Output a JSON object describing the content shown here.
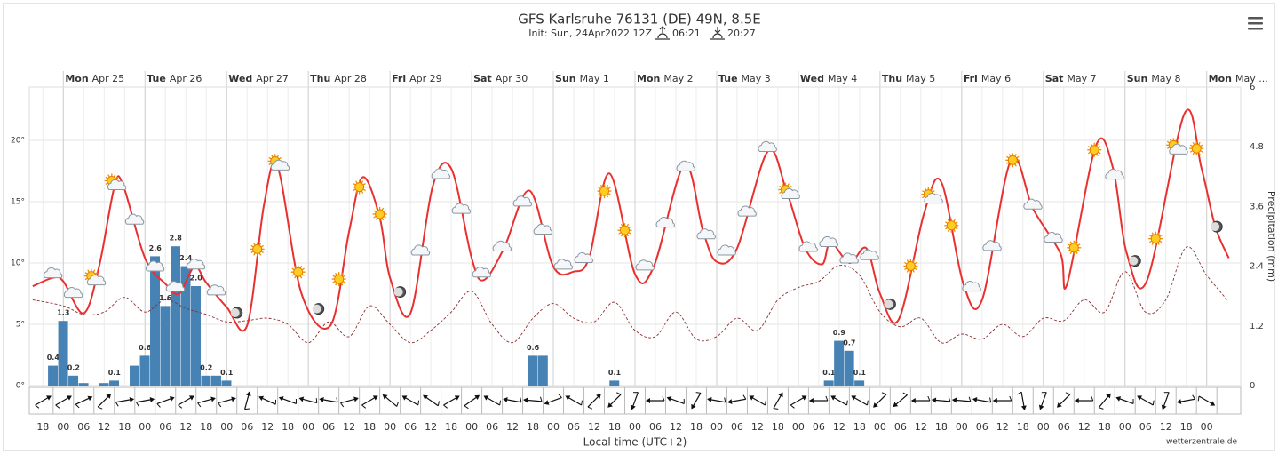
{
  "chart_data": {
    "type": "line",
    "title": "GFS Karlsruhe 76131 (DE) 49N, 8.5E",
    "subtitle": "Init: Sun, 24Apr2022 12Z",
    "sunrise": "06:21",
    "sunset": "20:27",
    "x_label": "Local time (UTC+2)",
    "y2_label": "Precipitation (mm)",
    "credit": "wetterzentrale.de",
    "grid": true,
    "days": [
      {
        "name": "Mon",
        "date": "Apr 25",
        "x": 0
      },
      {
        "name": "Tue",
        "date": "Apr 26",
        "x": 24
      },
      {
        "name": "Wed",
        "date": "Apr 27",
        "x": 48
      },
      {
        "name": "Thu",
        "date": "Apr 28",
        "x": 72
      },
      {
        "name": "Fri",
        "date": "Apr 29",
        "x": 96
      },
      {
        "name": "Sat",
        "date": "Apr 30",
        "x": 120
      },
      {
        "name": "Sun",
        "date": "May 1",
        "x": 144
      },
      {
        "name": "Mon",
        "date": "May 2",
        "x": 168
      },
      {
        "name": "Tue",
        "date": "May 3",
        "x": 192
      },
      {
        "name": "Wed",
        "date": "May 4",
        "x": 216
      },
      {
        "name": "Thu",
        "date": "May 5",
        "x": 240
      },
      {
        "name": "Fri",
        "date": "May 6",
        "x": 264
      },
      {
        "name": "Sat",
        "date": "May 7",
        "x": 288
      },
      {
        "name": "Sun",
        "date": "May 8",
        "x": 312
      },
      {
        "name": "Mon",
        "date": "May ...",
        "x": 336
      }
    ],
    "xlim": [
      -10,
      346
    ],
    "xticks": [
      {
        "value": -6,
        "label": "18"
      },
      {
        "value": 0,
        "label": "00"
      },
      {
        "value": 6,
        "label": "06"
      },
      {
        "value": 12,
        "label": "12"
      },
      {
        "value": 18,
        "label": "18"
      },
      {
        "value": 24,
        "label": "00"
      },
      {
        "value": 30,
        "label": "06"
      },
      {
        "value": 36,
        "label": "12"
      },
      {
        "value": 42,
        "label": "18"
      },
      {
        "value": 48,
        "label": "00"
      },
      {
        "value": 54,
        "label": "06"
      },
      {
        "value": 60,
        "label": "12"
      },
      {
        "value": 66,
        "label": "18"
      },
      {
        "value": 72,
        "label": "00"
      },
      {
        "value": 78,
        "label": "06"
      },
      {
        "value": 84,
        "label": "12"
      },
      {
        "value": 90,
        "label": "18"
      },
      {
        "value": 96,
        "label": "00"
      },
      {
        "value": 102,
        "label": "06"
      },
      {
        "value": 108,
        "label": "12"
      },
      {
        "value": 114,
        "label": "18"
      },
      {
        "value": 120,
        "label": "00"
      },
      {
        "value": 126,
        "label": "06"
      },
      {
        "value": 132,
        "label": "12"
      },
      {
        "value": 138,
        "label": "18"
      },
      {
        "value": 144,
        "label": "00"
      },
      {
        "value": 150,
        "label": "06"
      },
      {
        "value": 156,
        "label": "12"
      },
      {
        "value": 162,
        "label": "18"
      },
      {
        "value": 168,
        "label": "00"
      },
      {
        "value": 174,
        "label": "06"
      },
      {
        "value": 180,
        "label": "12"
      },
      {
        "value": 186,
        "label": "18"
      },
      {
        "value": 192,
        "label": "00"
      },
      {
        "value": 198,
        "label": "06"
      },
      {
        "value": 204,
        "label": "12"
      },
      {
        "value": 210,
        "label": "18"
      },
      {
        "value": 216,
        "label": "00"
      },
      {
        "value": 222,
        "label": "06"
      },
      {
        "value": 228,
        "label": "12"
      },
      {
        "value": 234,
        "label": "18"
      },
      {
        "value": 240,
        "label": "00"
      },
      {
        "value": 246,
        "label": "06"
      },
      {
        "value": 252,
        "label": "12"
      },
      {
        "value": 258,
        "label": "18"
      },
      {
        "value": 264,
        "label": "00"
      },
      {
        "value": 270,
        "label": "06"
      },
      {
        "value": 276,
        "label": "12"
      },
      {
        "value": 282,
        "label": "18"
      },
      {
        "value": 288,
        "label": "00"
      },
      {
        "value": 294,
        "label": "06"
      },
      {
        "value": 300,
        "label": "12"
      },
      {
        "value": 306,
        "label": "18"
      },
      {
        "value": 312,
        "label": "00"
      },
      {
        "value": 318,
        "label": "06"
      },
      {
        "value": 324,
        "label": "12"
      },
      {
        "value": 330,
        "label": "18"
      },
      {
        "value": 336,
        "label": "00"
      }
    ],
    "ylim": [
      0,
      24.35
    ],
    "yticks": [
      {
        "value": 0,
        "label": "0°"
      },
      {
        "value": 5,
        "label": "5°"
      },
      {
        "value": 10,
        "label": "10°"
      },
      {
        "value": 15,
        "label": "15°"
      },
      {
        "value": 20,
        "label": "20°"
      }
    ],
    "y2lim": [
      0,
      6
    ],
    "y2ticks": [
      0,
      1.2,
      2.4,
      3.6,
      4.8,
      6
    ],
    "series": [
      {
        "type": "bar",
        "axis": "y2",
        "color": "#4682b4",
        "x": [
          -3,
          0,
          3,
          6,
          12,
          15,
          21,
          24,
          27,
          30,
          33,
          36,
          39,
          42,
          45,
          48,
          138,
          141,
          162,
          225,
          228,
          231,
          234
        ],
        "values": [
          0.4,
          1.3,
          0.2,
          0.05,
          0.05,
          0.1,
          0.4,
          0.6,
          2.6,
          1.6,
          2.8,
          2.4,
          2.0,
          0.2,
          0.2,
          0.1,
          0.6,
          0.6,
          0.1,
          0.1,
          0.9,
          0.7,
          0.1
        ],
        "value_labels": [
          "0.4",
          "1.3",
          "0.2",
          null,
          null,
          "0.1",
          null,
          "0.6",
          "2.6",
          "1.6",
          "2.8",
          "2.4",
          "2.0",
          "0.2",
          null,
          "0.1",
          "0.6",
          null,
          "0.1",
          "0.1",
          "0.9",
          "0.7",
          "0.1"
        ]
      },
      {
        "type": "line",
        "dashed": true,
        "color": "#8b2f2f",
        "x": [
          -9,
          0,
          6,
          12,
          18,
          24,
          30,
          36,
          42,
          48,
          54,
          60,
          66,
          72,
          78,
          84,
          90,
          96,
          102,
          108,
          114,
          120,
          126,
          132,
          138,
          144,
          150,
          156,
          162,
          168,
          174,
          180,
          186,
          192,
          198,
          204,
          210,
          216,
          222,
          228,
          234,
          240,
          246,
          252,
          258,
          264,
          270,
          276,
          282,
          288,
          294,
          300,
          306,
          312,
          318,
          324,
          330,
          336,
          342
        ],
        "values": [
          7.0,
          6.5,
          5.8,
          6.0,
          7.2,
          6.0,
          7.0,
          6.3,
          5.8,
          5.2,
          5.3,
          5.5,
          5.0,
          3.5,
          5.2,
          4.0,
          6.5,
          5.0,
          3.5,
          4.5,
          6.0,
          7.7,
          5.0,
          3.5,
          5.5,
          6.7,
          5.5,
          5.2,
          6.8,
          4.5,
          4.0,
          6.0,
          3.8,
          4.0,
          5.5,
          4.5,
          7.0,
          8.0,
          8.5,
          9.8,
          9.0,
          6.0,
          4.8,
          5.5,
          3.5,
          4.2,
          3.8,
          5.0,
          4.0,
          5.5,
          5.3,
          7.0,
          6.0,
          9.3,
          6.0,
          7.0,
          11.3,
          9.0,
          7.0
        ]
      },
      {
        "type": "line",
        "color": "#e8302f",
        "x": [
          -9,
          -3,
          0,
          6,
          10.5,
          15,
          17.5,
          24,
          30,
          34,
          38.5,
          42,
          48,
          54,
          59,
          63,
          70,
          78.5,
          84,
          88,
          93,
          96,
          102,
          108.5,
          114,
          120,
          123.5,
          129.5,
          137,
          144,
          150,
          154.5,
          160.5,
          168,
          173.5,
          182.5,
          188,
          192,
          198,
          207,
          212.5,
          218,
          223,
          225.5,
          231,
          236,
          240,
          245.5,
          253,
          258,
          264.5,
          270,
          278.5,
          285,
          293,
          295,
          303.5,
          308.5,
          312.5,
          318.5,
          329.5,
          334.5,
          338.5,
          342.5
        ],
        "values": [
          8.1,
          8.8,
          8.5,
          5.9,
          9.7,
          16.2,
          16.4,
          10.4,
          8.3,
          7.5,
          9.7,
          8.4,
          6.4,
          4.9,
          14.8,
          17.8,
          7.5,
          4.9,
          12.6,
          17.0,
          13.7,
          8.8,
          5.9,
          16.2,
          17.7,
          10.4,
          8.6,
          11.2,
          15.9,
          9.7,
          9.3,
          10.4,
          17.3,
          9.1,
          9.7,
          18.0,
          12.6,
          10.1,
          11.2,
          19.1,
          15.9,
          11.2,
          9.9,
          11.7,
          10.0,
          11.2,
          7.5,
          5.4,
          14.1,
          16.6,
          8.3,
          7.0,
          18.4,
          14.4,
          10.8,
          8.3,
          19.6,
          17.7,
          10.8,
          8.6,
          22.2,
          17.7,
          13.0,
          10.4
        ]
      }
    ],
    "symbols": [
      {
        "x": -3,
        "kind": "cloud"
      },
      {
        "x": 3,
        "kind": "cloud"
      },
      {
        "x": 9,
        "kind": "partly"
      },
      {
        "x": 15,
        "kind": "partly"
      },
      {
        "x": 21,
        "kind": "cloud"
      },
      {
        "x": 27,
        "kind": "cloud"
      },
      {
        "x": 33,
        "kind": "cloud"
      },
      {
        "x": 39,
        "kind": "cloud"
      },
      {
        "x": 45,
        "kind": "cloud"
      },
      {
        "x": 51,
        "kind": "moon"
      },
      {
        "x": 57,
        "kind": "sun"
      },
      {
        "x": 63,
        "kind": "partly"
      },
      {
        "x": 69,
        "kind": "sun"
      },
      {
        "x": 75,
        "kind": "moon"
      },
      {
        "x": 81,
        "kind": "sun"
      },
      {
        "x": 87,
        "kind": "sun"
      },
      {
        "x": 93,
        "kind": "sun"
      },
      {
        "x": 99,
        "kind": "moon"
      },
      {
        "x": 105,
        "kind": "cloud"
      },
      {
        "x": 111,
        "kind": "cloud"
      },
      {
        "x": 117,
        "kind": "cloud"
      },
      {
        "x": 123,
        "kind": "cloud"
      },
      {
        "x": 129,
        "kind": "cloud"
      },
      {
        "x": 135,
        "kind": "cloud"
      },
      {
        "x": 141,
        "kind": "cloud"
      },
      {
        "x": 147,
        "kind": "cloud"
      },
      {
        "x": 153,
        "kind": "cloud"
      },
      {
        "x": 159,
        "kind": "sun"
      },
      {
        "x": 165,
        "kind": "sun"
      },
      {
        "x": 171,
        "kind": "cloud"
      },
      {
        "x": 177,
        "kind": "cloud"
      },
      {
        "x": 183,
        "kind": "cloud"
      },
      {
        "x": 189,
        "kind": "cloud"
      },
      {
        "x": 195,
        "kind": "cloud"
      },
      {
        "x": 201,
        "kind": "cloud"
      },
      {
        "x": 207,
        "kind": "cloud"
      },
      {
        "x": 213,
        "kind": "partly"
      },
      {
        "x": 219,
        "kind": "cloud"
      },
      {
        "x": 225,
        "kind": "cloud"
      },
      {
        "x": 231,
        "kind": "cloud"
      },
      {
        "x": 237,
        "kind": "cloud"
      },
      {
        "x": 243,
        "kind": "moon"
      },
      {
        "x": 249,
        "kind": "sun"
      },
      {
        "x": 255,
        "kind": "partly"
      },
      {
        "x": 261,
        "kind": "sun"
      },
      {
        "x": 267,
        "kind": "cloud"
      },
      {
        "x": 273,
        "kind": "cloud"
      },
      {
        "x": 279,
        "kind": "sun"
      },
      {
        "x": 285,
        "kind": "cloud"
      },
      {
        "x": 291,
        "kind": "cloud"
      },
      {
        "x": 297,
        "kind": "sun"
      },
      {
        "x": 303,
        "kind": "sun"
      },
      {
        "x": 309,
        "kind": "cloud"
      },
      {
        "x": 315,
        "kind": "moon"
      },
      {
        "x": 321,
        "kind": "sun"
      },
      {
        "x": 327,
        "kind": "partly"
      },
      {
        "x": 333,
        "kind": "sun"
      },
      {
        "x": 339,
        "kind": "moon"
      }
    ],
    "wind_direction": [
      60,
      60,
      65,
      45,
      80,
      80,
      70,
      60,
      75,
      75,
      15,
      295,
      290,
      285,
      280,
      75,
      60,
      310,
      300,
      305,
      60,
      55,
      300,
      280,
      275,
      250,
      300,
      45,
      225,
      200,
      270,
      290,
      210,
      280,
      260,
      300,
      30,
      60,
      270,
      300,
      300,
      225,
      230,
      270,
      275,
      275,
      280,
      270,
      170,
      200,
      225,
      270,
      40,
      290,
      300,
      200,
      260,
      120
    ]
  }
}
